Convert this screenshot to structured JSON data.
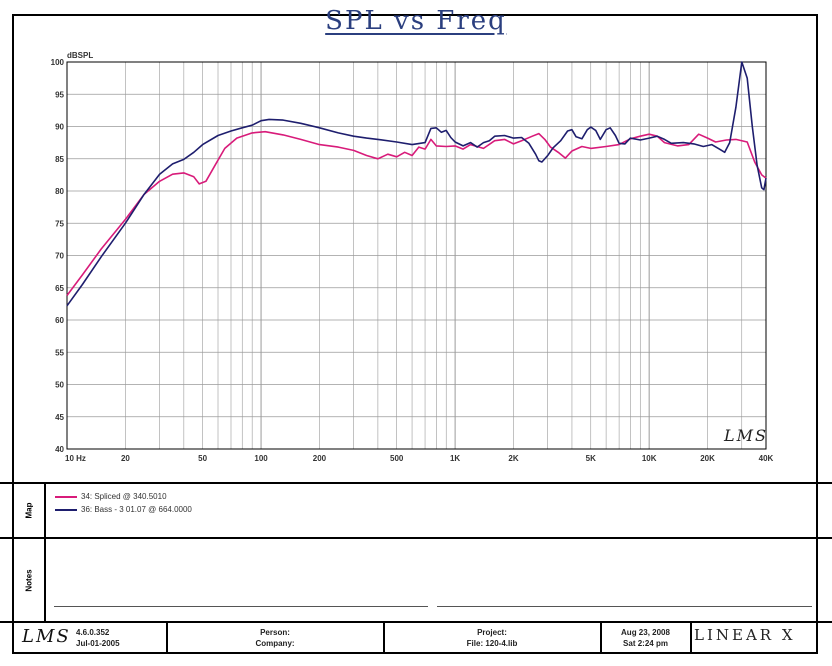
{
  "chart_data": {
    "type": "line",
    "title": "SPL vs Freq",
    "ylabel": "dBSPL",
    "x_scale": "log",
    "xlim": [
      10,
      40000
    ],
    "ylim": [
      40,
      100
    ],
    "y_ticks": [
      40,
      45,
      50,
      55,
      60,
      65,
      70,
      75,
      80,
      85,
      90,
      95,
      100
    ],
    "x_ticks": [
      {
        "v": 10,
        "label": "10 Hz"
      },
      {
        "v": 20,
        "label": "20"
      },
      {
        "v": 50,
        "label": "50"
      },
      {
        "v": 100,
        "label": "100"
      },
      {
        "v": 200,
        "label": "200"
      },
      {
        "v": 500,
        "label": "500"
      },
      {
        "v": 1000,
        "label": "1K"
      },
      {
        "v": 2000,
        "label": "2K"
      },
      {
        "v": 5000,
        "label": "5K"
      },
      {
        "v": 10000,
        "label": "10K"
      },
      {
        "v": 20000,
        "label": "20K"
      },
      {
        "v": 40000,
        "label": "40K"
      }
    ],
    "grid": true,
    "series": [
      {
        "name": "34: Spliced @ 340.5010",
        "color": "#d81b7a",
        "points": [
          [
            10,
            63.8
          ],
          [
            12,
            67
          ],
          [
            15,
            71
          ],
          [
            20,
            75.6
          ],
          [
            25,
            79.5
          ],
          [
            30,
            81.5
          ],
          [
            35,
            82.6
          ],
          [
            40,
            82.8
          ],
          [
            45,
            82.2
          ],
          [
            48,
            81.1
          ],
          [
            52,
            81.5
          ],
          [
            58,
            84
          ],
          [
            65,
            86.6
          ],
          [
            75,
            88.2
          ],
          [
            90,
            89
          ],
          [
            105,
            89.2
          ],
          [
            130,
            88.7
          ],
          [
            160,
            88
          ],
          [
            200,
            87.2
          ],
          [
            250,
            86.8
          ],
          [
            300,
            86.3
          ],
          [
            350,
            85.5
          ],
          [
            400,
            85
          ],
          [
            450,
            85.7
          ],
          [
            500,
            85.3
          ],
          [
            550,
            86
          ],
          [
            600,
            85.5
          ],
          [
            650,
            86.8
          ],
          [
            700,
            86.5
          ],
          [
            750,
            88
          ],
          [
            800,
            87
          ],
          [
            900,
            86.9
          ],
          [
            1000,
            87
          ],
          [
            1100,
            86.5
          ],
          [
            1200,
            87.2
          ],
          [
            1400,
            86.6
          ],
          [
            1600,
            87.8
          ],
          [
            1800,
            88
          ],
          [
            2000,
            87.3
          ],
          [
            2200,
            87.8
          ],
          [
            2500,
            88.5
          ],
          [
            2700,
            88.9
          ],
          [
            2900,
            88
          ],
          [
            3100,
            86.8
          ],
          [
            3400,
            86
          ],
          [
            3700,
            85.1
          ],
          [
            4000,
            86.2
          ],
          [
            4500,
            86.9
          ],
          [
            5000,
            86.6
          ],
          [
            6000,
            86.9
          ],
          [
            7000,
            87.2
          ],
          [
            8000,
            88.1
          ],
          [
            9000,
            88.5
          ],
          [
            10000,
            88.8
          ],
          [
            11000,
            88.5
          ],
          [
            12000,
            87.5
          ],
          [
            14000,
            87
          ],
          [
            16000,
            87.2
          ],
          [
            18000,
            88.8
          ],
          [
            20000,
            88.2
          ],
          [
            22000,
            87.6
          ],
          [
            25000,
            87.9
          ],
          [
            28000,
            88
          ],
          [
            32000,
            87.6
          ],
          [
            35000,
            84.5
          ],
          [
            38000,
            82.5
          ],
          [
            40000,
            82
          ]
        ]
      },
      {
        "name": "36: Bass - 3 01.07 @ 664.0000",
        "color": "#1e1e6e",
        "points": [
          [
            10,
            62.2
          ],
          [
            12,
            65.5
          ],
          [
            15,
            69.8
          ],
          [
            20,
            75
          ],
          [
            25,
            79.5
          ],
          [
            30,
            82.6
          ],
          [
            35,
            84.2
          ],
          [
            40,
            84.9
          ],
          [
            45,
            86
          ],
          [
            50,
            87.2
          ],
          [
            60,
            88.6
          ],
          [
            70,
            89.3
          ],
          [
            80,
            89.8
          ],
          [
            90,
            90.2
          ],
          [
            100,
            90.9
          ],
          [
            110,
            91.1
          ],
          [
            130,
            91
          ],
          [
            160,
            90.5
          ],
          [
            200,
            89.8
          ],
          [
            250,
            89
          ],
          [
            300,
            88.5
          ],
          [
            350,
            88.2
          ],
          [
            400,
            88
          ],
          [
            500,
            87.6
          ],
          [
            600,
            87.2
          ],
          [
            700,
            87.5
          ],
          [
            750,
            89.7
          ],
          [
            800,
            89.8
          ],
          [
            850,
            89.1
          ],
          [
            900,
            89.4
          ],
          [
            950,
            88.3
          ],
          [
            1000,
            87.6
          ],
          [
            1100,
            87
          ],
          [
            1200,
            87.5
          ],
          [
            1300,
            86.8
          ],
          [
            1400,
            87.5
          ],
          [
            1500,
            87.8
          ],
          [
            1600,
            88.5
          ],
          [
            1800,
            88.6
          ],
          [
            2000,
            88.2
          ],
          [
            2200,
            88.3
          ],
          [
            2400,
            87.4
          ],
          [
            2600,
            85.7
          ],
          [
            2700,
            84.7
          ],
          [
            2800,
            84.5
          ],
          [
            3000,
            85.5
          ],
          [
            3200,
            86.7
          ],
          [
            3500,
            87.8
          ],
          [
            3800,
            89.3
          ],
          [
            4000,
            89.5
          ],
          [
            4200,
            88.4
          ],
          [
            4500,
            88.1
          ],
          [
            4800,
            89.5
          ],
          [
            5000,
            89.9
          ],
          [
            5300,
            89.4
          ],
          [
            5600,
            88
          ],
          [
            6000,
            89.5
          ],
          [
            6300,
            89.8
          ],
          [
            6700,
            88.6
          ],
          [
            7000,
            87.4
          ],
          [
            7500,
            87.3
          ],
          [
            8000,
            88.2
          ],
          [
            9000,
            87.9
          ],
          [
            10000,
            88.2
          ],
          [
            11000,
            88.5
          ],
          [
            12000,
            88
          ],
          [
            13000,
            87.4
          ],
          [
            15000,
            87.5
          ],
          [
            17000,
            87.3
          ],
          [
            19000,
            86.9
          ],
          [
            21000,
            87.2
          ],
          [
            23000,
            86.5
          ],
          [
            24500,
            86
          ],
          [
            26000,
            87.5
          ],
          [
            28000,
            93
          ],
          [
            30000,
            100
          ],
          [
            32000,
            97.5
          ],
          [
            34000,
            90
          ],
          [
            36000,
            84
          ],
          [
            38000,
            80.5
          ],
          [
            39000,
            80.2
          ],
          [
            40000,
            82
          ]
        ]
      }
    ]
  },
  "panels": {
    "map_label": "Map",
    "notes_label": "Notes"
  },
  "footer": {
    "version": "4.6.0.352",
    "build_date": "Jul-01-2005",
    "person_label": "Person:",
    "company_label": "Company:",
    "project_label": "Project:",
    "file_label": "File: 120-4.lib",
    "date": "Aug 23, 2008",
    "time": "Sat 2:24 pm",
    "brand": "LINEAR X",
    "watermark": "LMS"
  },
  "colors": {
    "plot_bg": "#ffffff",
    "grid": "#9a9a9a",
    "title": "#2b3f7f"
  }
}
